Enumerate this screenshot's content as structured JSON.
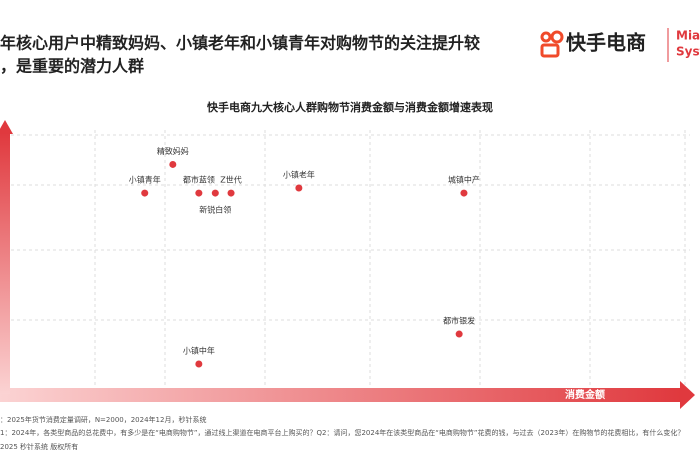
{
  "header": {
    "lines": [
      "年核心用户中精致妈妈、小镇老年和小镇青年对购物节的关注提升较",
      "，是重要的潜力人群"
    ]
  },
  "logo": {
    "text": "快手电商",
    "brand": [
      "Miao",
      "Syste"
    ]
  },
  "chart_data": {
    "type": "scatter",
    "title": "快手电商九大核心人群购物节消费金额与消费金额增速表现",
    "x_label": "消费金额",
    "labels": [
      "精致妈妈",
      "小镇青年",
      "都市蓝领",
      "新锐白领",
      "Z世代",
      "小镇老年",
      "城镇中产",
      "都市银发",
      "小镇中年"
    ],
    "x": [
      24.5,
      20.4,
      28.3,
      30.7,
      33.0,
      42.9,
      67.0,
      66.3,
      28.3
    ],
    "values": [
      87,
      76.2,
      76.2,
      76.2,
      76.2,
      78.1,
      76.2,
      23.0,
      11.7
    ],
    "color": "#e0393e",
    "xlim": [
      0,
      100
    ],
    "ylim": [
      0,
      100
    ]
  },
  "footer": {
    "lines": [
      "：2025年货节消费定量调研，N=2000，2024年12月，秒针系统",
      "1：2024年，各类型商品的总花费中，有多少是在“电商购物节”，通过线上渠道在电商平台上购买的？Q2：请问，您2024年在该类型商品在“电商购物节”花费的钱，与过去（2023年）在购物节的花费相比，有什么变化？",
      "2025 秒针系统 版权所有"
    ]
  }
}
